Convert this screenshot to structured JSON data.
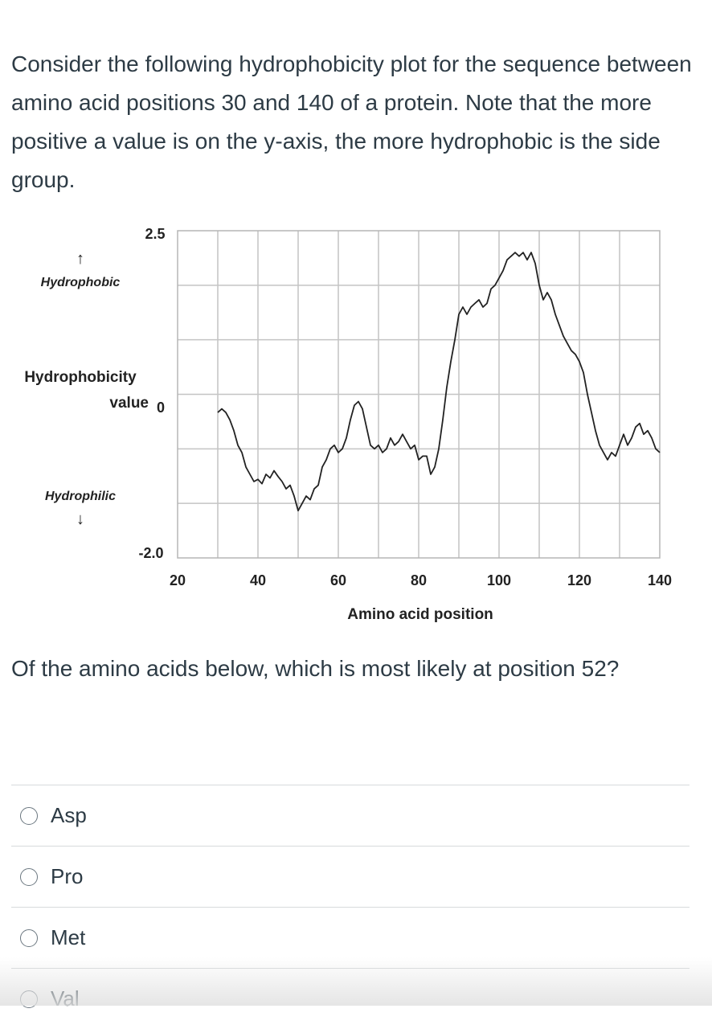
{
  "question": {
    "intro": "Consider the following hydrophobicity plot for the sequence between amino acid positions 30 and 140 of a protein. Note that the more positive a value is on the y-axis, the more hydrophobic is the side group.",
    "prompt": "Of the amino acids below, which is most likely at position 52?"
  },
  "figure": {
    "hydrophobic_label": "Hydrophobic",
    "hydrophilic_label": "Hydrophilic",
    "up_arrow": "↑",
    "down_arrow": "↓",
    "ylabel_line1": "Hydrophobicity",
    "ylabel_line2": "value",
    "y_ticks": [
      "2.5",
      "0",
      "-2.0"
    ],
    "x_ticks": [
      "20",
      "40",
      "60",
      "80",
      "100",
      "120",
      "140"
    ],
    "xlabel": "Amino acid position"
  },
  "chart_data": {
    "type": "line",
    "xlabel": "Amino acid position",
    "ylabel": "Hydrophobicity value",
    "xlim": [
      20,
      140
    ],
    "ylim": [
      -2.0,
      2.5
    ],
    "x_ticks": [
      20,
      40,
      60,
      80,
      100,
      120,
      140
    ],
    "y_ticks": [
      2.5,
      0,
      -2.0
    ],
    "grid": true,
    "x": [
      30,
      31,
      32,
      33,
      34,
      35,
      36,
      37,
      38,
      39,
      40,
      41,
      42,
      43,
      44,
      45,
      46,
      47,
      48,
      49,
      50,
      51,
      52,
      53,
      54,
      55,
      56,
      57,
      58,
      59,
      60,
      61,
      62,
      63,
      64,
      65,
      66,
      67,
      68,
      69,
      70,
      71,
      72,
      73,
      74,
      75,
      76,
      77,
      78,
      79,
      80,
      81,
      82,
      83,
      84,
      85,
      86,
      87,
      88,
      89,
      90,
      91,
      92,
      93,
      94,
      95,
      96,
      97,
      98,
      99,
      100,
      101,
      102,
      103,
      104,
      105,
      106,
      107,
      108,
      109,
      110,
      111,
      112,
      113,
      114,
      115,
      116,
      117,
      118,
      119,
      120,
      121,
      122,
      123,
      124,
      125,
      126,
      127,
      128,
      129,
      130,
      131,
      132,
      133,
      134,
      135,
      136,
      137,
      138,
      139,
      140
    ],
    "y": [
      0.0,
      0.05,
      0.0,
      -0.1,
      -0.25,
      -0.45,
      -0.55,
      -0.75,
      -0.85,
      -0.95,
      -0.92,
      -0.98,
      -0.85,
      -0.9,
      -0.8,
      -0.88,
      -0.95,
      -1.05,
      -1.0,
      -1.15,
      -1.35,
      -1.25,
      -1.15,
      -1.2,
      -1.05,
      -1.0,
      -0.75,
      -0.65,
      -0.5,
      -0.45,
      -0.55,
      -0.5,
      -0.35,
      -0.1,
      0.1,
      0.15,
      0.05,
      -0.2,
      -0.45,
      -0.5,
      -0.45,
      -0.55,
      -0.5,
      -0.35,
      -0.45,
      -0.4,
      -0.3,
      -0.4,
      -0.5,
      -0.45,
      -0.65,
      -0.6,
      -0.6,
      -0.85,
      -0.75,
      -0.5,
      -0.1,
      0.35,
      0.7,
      1.0,
      1.35,
      1.45,
      1.35,
      1.45,
      1.5,
      1.55,
      1.45,
      1.5,
      1.7,
      1.75,
      1.85,
      1.95,
      2.1,
      2.15,
      2.2,
      2.15,
      2.2,
      2.1,
      2.2,
      2.05,
      1.75,
      1.55,
      1.65,
      1.55,
      1.35,
      1.2,
      1.05,
      0.95,
      0.85,
      0.8,
      0.7,
      0.55,
      0.25,
      0.0,
      -0.25,
      -0.45,
      -0.55,
      -0.65,
      -0.55,
      -0.6,
      -0.45,
      -0.3,
      -0.45,
      -0.35,
      -0.2,
      -0.15,
      -0.3,
      -0.25,
      -0.35,
      -0.5,
      -0.55
    ]
  },
  "answers": [
    {
      "label": "Asp",
      "selected": false
    },
    {
      "label": "Pro",
      "selected": false
    },
    {
      "label": "Met",
      "selected": false
    },
    {
      "label": "Val",
      "selected": false
    }
  ]
}
